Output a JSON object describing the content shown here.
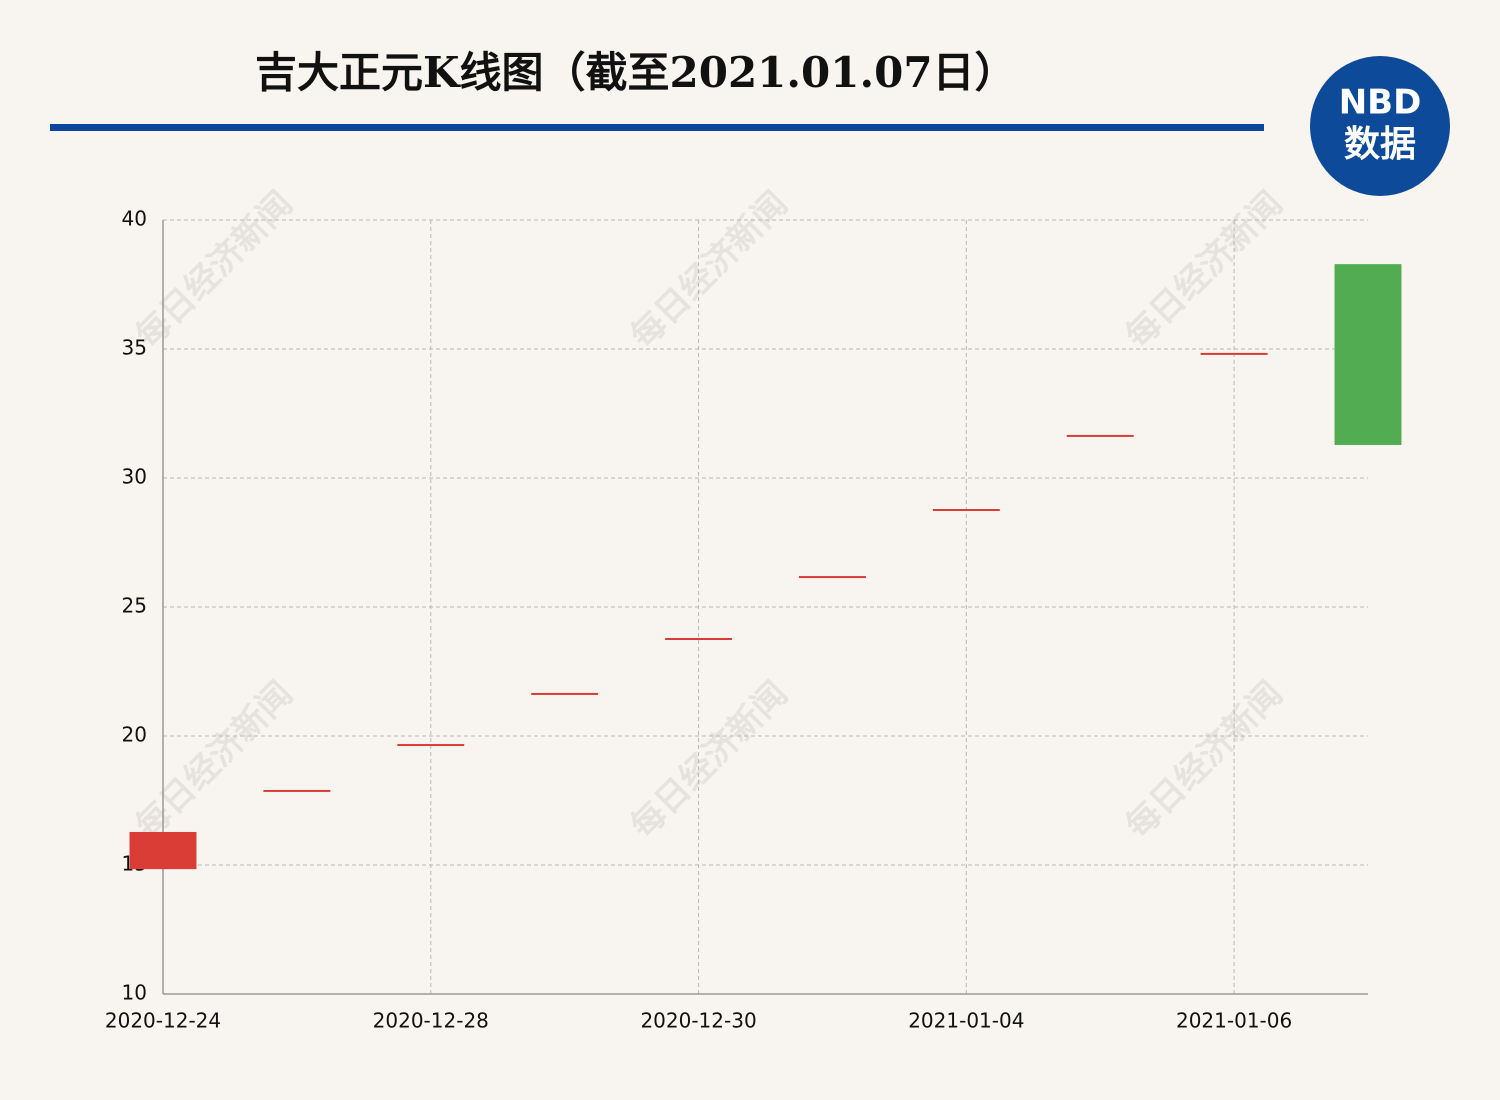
{
  "chart_data": {
    "type": "candlestick",
    "title": "吉大正元K线图（截至2021.01.07日）",
    "logo": {
      "top": "NBD",
      "bottom": "数据"
    },
    "watermark": "每日经济新闻",
    "categories": [
      "2020-12-24",
      null,
      "2020-12-28",
      null,
      "2020-12-30",
      null,
      "2021-01-04",
      null,
      "2021-01-06",
      null
    ],
    "open": [
      14.84,
      17.87,
      19.65,
      21.63,
      23.76,
      26.16,
      28.76,
      31.63,
      34.81,
      38.29
    ],
    "close": [
      16.28,
      17.87,
      19.65,
      21.63,
      23.76,
      26.16,
      28.76,
      31.63,
      34.81,
      31.28
    ],
    "up_color": "#d93d35",
    "down_color": "#52ad52",
    "ylim": [
      10,
      40
    ],
    "yticks": [
      10,
      15,
      20,
      25,
      30,
      35,
      40
    ],
    "grid": true
  }
}
